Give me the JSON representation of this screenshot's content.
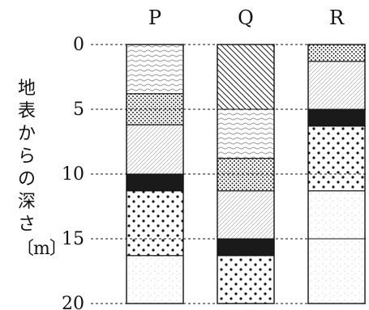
{
  "figure": {
    "y_axis_label": "地表からの深さ",
    "y_axis_unit": "〔m〕",
    "depth_ticks": [
      "0",
      "5",
      "10",
      "15",
      "20"
    ]
  },
  "columns": [
    {
      "name": "P",
      "layers": [
        {
          "from": 0,
          "to": 3.8,
          "pattern": "wavy"
        },
        {
          "from": 3.8,
          "to": 6.2,
          "pattern": "dense-dots"
        },
        {
          "from": 6.2,
          "to": 10.0,
          "pattern": "fine-hatch"
        },
        {
          "from": 10.0,
          "to": 11.3,
          "pattern": "black"
        },
        {
          "from": 11.3,
          "to": 16.3,
          "pattern": "large-dots"
        },
        {
          "from": 16.3,
          "to": 20.0,
          "pattern": "faint-grain"
        }
      ]
    },
    {
      "name": "Q",
      "layers": [
        {
          "from": 0,
          "to": 5.0,
          "pattern": "diagonal-lines"
        },
        {
          "from": 5.0,
          "to": 8.8,
          "pattern": "wavy"
        },
        {
          "from": 8.8,
          "to": 11.3,
          "pattern": "dense-dots"
        },
        {
          "from": 11.3,
          "to": 15.0,
          "pattern": "fine-hatch"
        },
        {
          "from": 15.0,
          "to": 16.3,
          "pattern": "black"
        },
        {
          "from": 16.3,
          "to": 20.0,
          "pattern": "large-dots"
        }
      ]
    },
    {
      "name": "R",
      "layers": [
        {
          "from": 0,
          "to": 1.3,
          "pattern": "dense-dots"
        },
        {
          "from": 1.3,
          "to": 5.0,
          "pattern": "fine-hatch"
        },
        {
          "from": 5.0,
          "to": 6.3,
          "pattern": "black"
        },
        {
          "from": 6.3,
          "to": 11.3,
          "pattern": "large-dots"
        },
        {
          "from": 11.3,
          "to": 15.0,
          "pattern": "faint-grain"
        },
        {
          "from": 15.0,
          "to": 20.0,
          "pattern": "faint-grain"
        }
      ]
    }
  ],
  "colors": {
    "ink": "#111111",
    "black_layer": "#1a1a1a"
  }
}
